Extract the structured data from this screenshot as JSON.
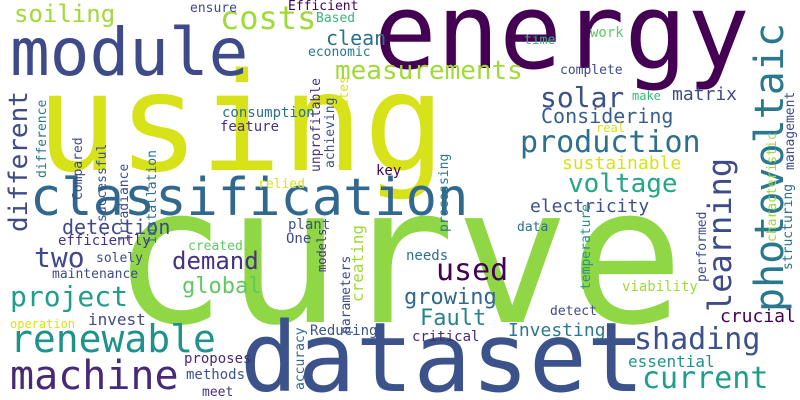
{
  "words": [
    {
      "id": "using",
      "text": "using",
      "color": "#d8e219"
    },
    {
      "id": "curve",
      "text": "curve",
      "color": "#8fd744"
    },
    {
      "id": "energy",
      "text": "energy",
      "color": "#440154"
    },
    {
      "id": "dataset",
      "text": "dataset",
      "color": "#3b528b"
    },
    {
      "id": "module",
      "text": "module",
      "color": "#3e4a89"
    },
    {
      "id": "classification",
      "text": "classification",
      "color": "#31688e"
    },
    {
      "id": "photovoltaic",
      "text": "photovoltaic",
      "color": "#2a788e"
    },
    {
      "id": "learning",
      "text": "learning",
      "color": "#3e4a89"
    },
    {
      "id": "machine",
      "text": "machine",
      "color": "#482878"
    },
    {
      "id": "renewable",
      "text": "renewable",
      "color": "#21918c"
    },
    {
      "id": "different",
      "text": "different",
      "color": "#3e4a89"
    },
    {
      "id": "production",
      "text": "production",
      "color": "#2d708e"
    },
    {
      "id": "measurements",
      "text": "measurements",
      "color": "#a0da39"
    },
    {
      "id": "voltage",
      "text": "voltage",
      "color": "#22a884"
    },
    {
      "id": "solar",
      "text": "solar",
      "color": "#3b528b"
    },
    {
      "id": "costs",
      "text": "costs",
      "color": "#a0da39"
    },
    {
      "id": "soiling",
      "text": "soiling",
      "color": "#a0da39"
    },
    {
      "id": "current",
      "text": "current",
      "color": "#1f9e89"
    },
    {
      "id": "shading",
      "text": "shading",
      "color": "#3b528b"
    },
    {
      "id": "project",
      "text": "project",
      "color": "#1f9e89"
    },
    {
      "id": "two",
      "text": "two",
      "color": "#3e4a89"
    },
    {
      "id": "used",
      "text": "used",
      "color": "#440154"
    },
    {
      "id": "demand",
      "text": "demand",
      "color": "#46327e"
    },
    {
      "id": "global",
      "text": "global",
      "color": "#5ec962"
    },
    {
      "id": "growing",
      "text": "growing",
      "color": "#31688e"
    },
    {
      "id": "creating",
      "text": "creating",
      "color": "#a0da39"
    },
    {
      "id": "detection",
      "text": "detection",
      "color": "#3e4a89"
    },
    {
      "id": "electricity",
      "text": "electricity",
      "color": "#3b528b"
    },
    {
      "id": "fault",
      "text": "Fault",
      "color": "#26828e"
    },
    {
      "id": "considering",
      "text": "Considering",
      "color": "#355f8d"
    },
    {
      "id": "investing",
      "text": "Investing",
      "color": "#2a788e"
    },
    {
      "id": "essential",
      "text": "essential",
      "color": "#21918c"
    },
    {
      "id": "crucial",
      "text": "crucial",
      "color": "#440154"
    },
    {
      "id": "sustainable",
      "text": "sustainable",
      "color": "#d8e219"
    },
    {
      "id": "matrix",
      "text": "matrix",
      "color": "#3e4a89"
    },
    {
      "id": "clean",
      "text": "clean",
      "color": "#2d708e"
    },
    {
      "id": "invest",
      "text": "invest",
      "color": "#3e4a89"
    },
    {
      "id": "efficiently",
      "text": "efficiently",
      "color": "#46327e"
    },
    {
      "id": "feature",
      "text": "feature",
      "color": "#46327e"
    },
    {
      "id": "plant",
      "text": "plant",
      "color": "#3b528b"
    },
    {
      "id": "one",
      "text": "One",
      "color": "#3e4a89"
    },
    {
      "id": "proposes",
      "text": "proposes",
      "color": "#482878"
    },
    {
      "id": "methods",
      "text": "methods",
      "color": "#3b528b"
    },
    {
      "id": "critical",
      "text": "critical",
      "color": "#482878"
    },
    {
      "id": "reducing",
      "text": "Reducing",
      "color": "#3b528b"
    },
    {
      "id": "meet",
      "text": "meet",
      "color": "#46327e"
    },
    {
      "id": "viability",
      "text": "viability",
      "color": "#a0da39"
    },
    {
      "id": "detect",
      "text": "detect",
      "color": "#3e4a89"
    },
    {
      "id": "needs",
      "text": "needs",
      "color": "#2d708e"
    },
    {
      "id": "data",
      "text": "data",
      "color": "#2d708e"
    },
    {
      "id": "key",
      "text": "key",
      "color": "#440154"
    },
    {
      "id": "work",
      "text": "work",
      "color": "#5ec962"
    },
    {
      "id": "time",
      "text": "time",
      "color": "#35b779"
    },
    {
      "id": "complete",
      "text": "complete",
      "color": "#3e4a89"
    },
    {
      "id": "make",
      "text": "make",
      "color": "#35b779"
    },
    {
      "id": "real",
      "text": "real",
      "color": "#d8e219"
    },
    {
      "id": "economic",
      "text": "economic",
      "color": "#2a788e"
    },
    {
      "id": "based",
      "text": "Based",
      "color": "#35b779"
    },
    {
      "id": "efficient",
      "text": "Efficient",
      "color": "#440154"
    },
    {
      "id": "ensure",
      "text": "ensure",
      "color": "#3e4a89"
    },
    {
      "id": "consumption",
      "text": "consumption",
      "color": "#2d708e"
    },
    {
      "id": "created",
      "text": "created",
      "color": "#5ec962"
    },
    {
      "id": "relied",
      "text": "relied",
      "color": "#d8e219"
    },
    {
      "id": "solely",
      "text": "solely",
      "color": "#3e4a89"
    },
    {
      "id": "maintenance",
      "text": "maintenance",
      "color": "#3e4a89"
    },
    {
      "id": "operation",
      "text": "operation",
      "color": "#d8e219"
    },
    {
      "id": "successful",
      "text": "successful",
      "color": "#3b528b"
    },
    {
      "id": "compared",
      "text": "Compared",
      "color": "#3e4a89"
    },
    {
      "id": "difference",
      "text": "difference",
      "color": "#2a788e"
    },
    {
      "id": "irradiance",
      "text": "irradiance",
      "color": "#3e4a89"
    },
    {
      "id": "installation",
      "text": "installation",
      "color": "#2d708e"
    },
    {
      "id": "unprofitable",
      "text": "unprofitable",
      "color": "#46327e"
    },
    {
      "id": "achieving",
      "text": "achieving",
      "color": "#3b528b"
    },
    {
      "id": "incorporates",
      "text": "incorporates",
      "color": "#d8e219"
    },
    {
      "id": "processing",
      "text": "processing",
      "color": "#2a788e"
    },
    {
      "id": "parameters",
      "text": "parameters",
      "color": "#3e4a89"
    },
    {
      "id": "models",
      "text": "models",
      "color": "#46327e"
    },
    {
      "id": "accuracy",
      "text": "accuracy",
      "color": "#31688e"
    },
    {
      "id": "temperature",
      "text": "temperature",
      "color": "#21918c"
    },
    {
      "id": "performed",
      "text": "performed",
      "color": "#3e4a89"
    },
    {
      "id": "characteristic",
      "text": "characteristic",
      "color": "#a0da39"
    },
    {
      "id": "structuring",
      "text": "structuring",
      "color": "#2d708e"
    },
    {
      "id": "management",
      "text": "management",
      "color": "#3e4a89"
    }
  ]
}
